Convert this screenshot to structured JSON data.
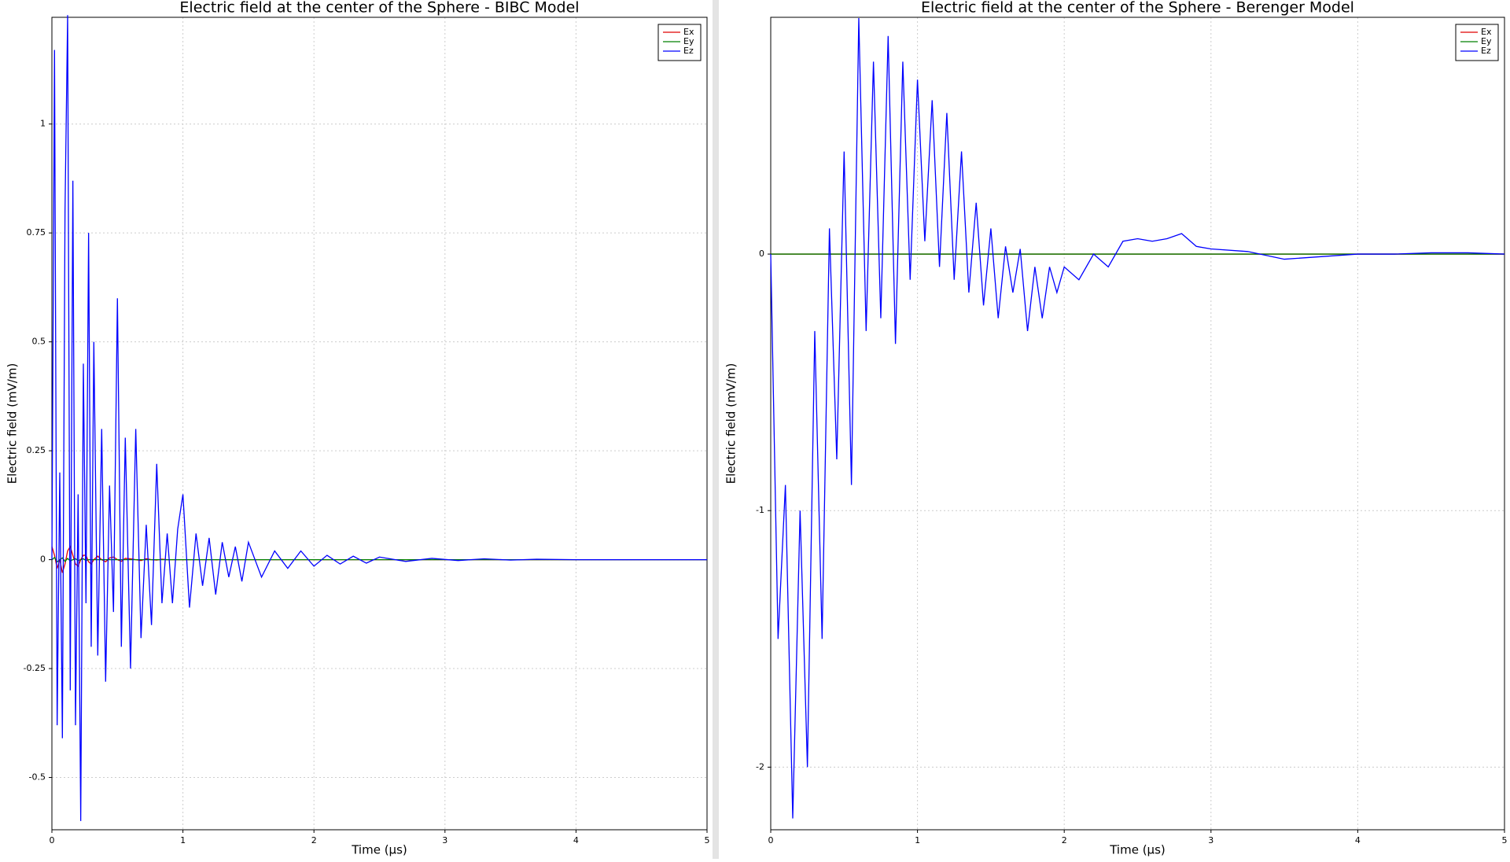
{
  "chart_data": [
    {
      "type": "line",
      "title": "Electric field at the center of the Sphere - BIBC Model",
      "xlabel": "Time (µs)",
      "ylabel": "Electric field (mV/m)",
      "x": [
        0,
        0.02,
        0.04,
        0.06,
        0.08,
        0.1,
        0.12,
        0.14,
        0.16,
        0.18,
        0.2,
        0.22,
        0.24,
        0.26,
        0.28,
        0.3,
        0.32,
        0.35,
        0.38,
        0.41,
        0.44,
        0.47,
        0.5,
        0.53,
        0.56,
        0.6,
        0.64,
        0.68,
        0.72,
        0.76,
        0.8,
        0.84,
        0.88,
        0.92,
        0.96,
        1.0,
        1.05,
        1.1,
        1.15,
        1.2,
        1.25,
        1.3,
        1.35,
        1.4,
        1.45,
        1.5,
        1.6,
        1.7,
        1.8,
        1.9,
        2.0,
        2.1,
        2.2,
        2.3,
        2.4,
        2.5,
        2.7,
        2.9,
        3.1,
        3.3,
        3.5,
        3.7,
        4.0,
        4.3,
        4.6,
        5.0
      ],
      "series": [
        {
          "name": "Ex",
          "color": "#e00000",
          "values": [
            0.03,
            0.01,
            -0.02,
            0,
            -0.03,
            -0.01,
            0.02,
            0.03,
            0.01,
            -0.01,
            -0.015,
            0,
            0.01,
            0.01,
            -0.005,
            -0.01,
            0,
            0.008,
            0,
            -0.005,
            0.004,
            0.006,
            0,
            -0.004,
            0.003,
            0.002,
            0,
            -0.002,
            0.002,
            0,
            -0.001,
            0.001,
            0,
            0,
            0,
            0,
            0,
            0,
            0,
            0,
            0,
            0,
            0,
            0,
            0,
            0,
            0,
            0,
            0,
            0,
            0,
            0,
            0,
            0,
            0,
            0,
            0,
            0,
            0,
            0,
            0,
            0,
            0,
            0,
            0,
            0
          ]
        },
        {
          "name": "Ey",
          "color": "#008000",
          "values": [
            0,
            0.005,
            -0.005,
            0,
            0.004,
            -0.004,
            0.003,
            -0.003,
            0,
            0.002,
            -0.002,
            0,
            0.002,
            -0.002,
            0,
            0,
            0,
            0,
            0,
            0,
            0,
            0,
            0,
            0,
            0,
            0,
            0,
            0,
            0,
            0,
            0,
            0,
            0,
            0,
            0,
            0,
            0,
            0,
            0,
            0,
            0,
            0,
            0,
            0,
            0,
            0,
            0,
            0,
            0,
            0,
            0,
            0,
            0,
            0,
            0,
            0,
            0,
            0,
            0,
            0,
            0,
            0,
            0,
            0,
            0,
            0
          ]
        },
        {
          "name": "Ez",
          "color": "#0000ff",
          "values": [
            0,
            1.17,
            -0.38,
            0.2,
            -0.41,
            0.8,
            1.25,
            -0.3,
            0.87,
            -0.38,
            0.15,
            -0.6,
            0.45,
            -0.1,
            0.75,
            -0.2,
            0.5,
            -0.22,
            0.3,
            -0.28,
            0.17,
            -0.12,
            0.6,
            -0.2,
            0.28,
            -0.25,
            0.3,
            -0.18,
            0.08,
            -0.15,
            0.22,
            -0.1,
            0.06,
            -0.1,
            0.07,
            0.15,
            -0.11,
            0.06,
            -0.06,
            0.05,
            -0.08,
            0.04,
            -0.04,
            0.03,
            -0.05,
            0.04,
            -0.04,
            0.02,
            -0.02,
            0.02,
            -0.015,
            0.01,
            -0.01,
            0.008,
            -0.008,
            0.006,
            -0.004,
            0.003,
            -0.002,
            0.002,
            -0.001,
            0.001,
            0,
            0,
            0,
            0
          ]
        }
      ],
      "xlim": [
        0,
        5
      ],
      "ylim": [
        -0.62,
        1.245
      ],
      "xticks": [
        0,
        1,
        2,
        3,
        4,
        5
      ],
      "yticks": [
        -0.5,
        -0.25,
        0,
        0.25,
        0.5,
        0.75,
        1
      ],
      "grid": true,
      "legend": "upper right"
    },
    {
      "type": "line",
      "title": "Electric field at the center of the Sphere - Berenger Model",
      "xlabel": "Time (µs)",
      "ylabel": "Electric field (mV/m)",
      "x": [
        0,
        0.05,
        0.1,
        0.15,
        0.2,
        0.25,
        0.3,
        0.35,
        0.4,
        0.45,
        0.5,
        0.55,
        0.6,
        0.65,
        0.7,
        0.75,
        0.8,
        0.85,
        0.9,
        0.95,
        1.0,
        1.05,
        1.1,
        1.15,
        1.2,
        1.25,
        1.3,
        1.35,
        1.4,
        1.45,
        1.5,
        1.55,
        1.6,
        1.65,
        1.7,
        1.75,
        1.8,
        1.85,
        1.9,
        1.95,
        2.0,
        2.1,
        2.2,
        2.3,
        2.4,
        2.5,
        2.6,
        2.7,
        2.8,
        2.9,
        3.0,
        3.25,
        3.5,
        3.75,
        4.0,
        4.25,
        4.5,
        4.75,
        5.0
      ],
      "series": [
        {
          "name": "Ex",
          "color": "#e00000",
          "values": [
            0,
            0,
            0,
            0,
            0,
            0,
            0,
            0,
            0,
            0,
            0,
            0,
            0,
            0,
            0,
            0,
            0,
            0,
            0,
            0,
            0,
            0,
            0,
            0,
            0,
            0,
            0,
            0,
            0,
            0,
            0,
            0,
            0,
            0,
            0,
            0,
            0,
            0,
            0,
            0,
            0,
            0,
            0,
            0,
            0,
            0,
            0,
            0,
            0,
            0,
            0,
            0,
            0,
            0,
            0,
            0,
            0,
            0,
            0
          ]
        },
        {
          "name": "Ey",
          "color": "#008000",
          "values": [
            0,
            0,
            0,
            0,
            0,
            0,
            0,
            0,
            0,
            0,
            0,
            0,
            0,
            0,
            0,
            0,
            0,
            0,
            0,
            0,
            0,
            0,
            0,
            0,
            0,
            0,
            0,
            0,
            0,
            0,
            0,
            0,
            0,
            0,
            0,
            0,
            0,
            0,
            0,
            0,
            0,
            0,
            0,
            0,
            0,
            0,
            0,
            0,
            0,
            0,
            0,
            0,
            0,
            0,
            0,
            0,
            0,
            0,
            0
          ]
        },
        {
          "name": "Ez",
          "color": "#0000ff",
          "values": [
            0,
            -1.5,
            -0.9,
            -2.2,
            -1.0,
            -2.0,
            -0.3,
            -1.5,
            0.1,
            -0.8,
            0.4,
            -0.9,
            0.92,
            -0.3,
            0.75,
            -0.25,
            0.85,
            -0.35,
            0.75,
            -0.1,
            0.68,
            0.05,
            0.6,
            -0.05,
            0.55,
            -0.1,
            0.4,
            -0.15,
            0.2,
            -0.2,
            0.1,
            -0.25,
            0.03,
            -0.15,
            0.02,
            -0.3,
            -0.05,
            -0.25,
            -0.05,
            -0.15,
            -0.05,
            -0.1,
            0,
            -0.05,
            0.05,
            0.06,
            0.05,
            0.06,
            0.08,
            0.03,
            0.02,
            0.01,
            -0.02,
            -0.01,
            0,
            0,
            0.005,
            0.005,
            0
          ]
        }
      ],
      "xlim": [
        0,
        5
      ],
      "ylim": [
        -2.244,
        0.923
      ],
      "xticks": [
        0,
        1,
        2,
        3,
        4,
        5
      ],
      "yticks": [
        -2,
        -1,
        0
      ],
      "grid": true,
      "legend": "upper right"
    }
  ]
}
